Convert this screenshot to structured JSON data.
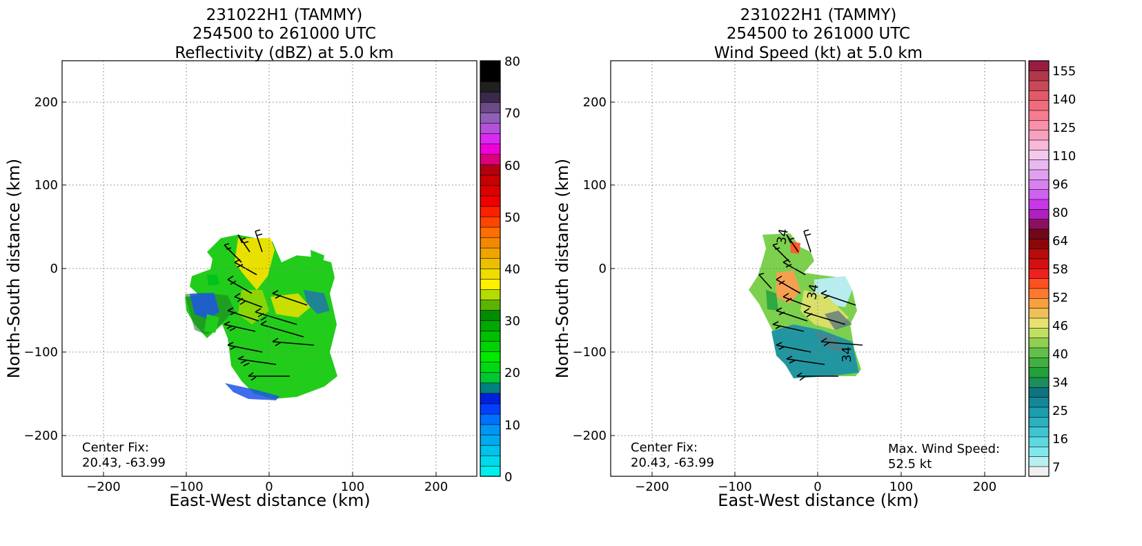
{
  "charts": [
    {
      "title_lines": [
        "231022H1 (TAMMY)",
        "254500 to 261000 UTC",
        "Reflectivity (dBZ) at 5.0 km"
      ],
      "xlabel": "East-West distance (km)",
      "ylabel": "North-South distance (km)",
      "xticks": [
        "−200",
        "−100",
        "0",
        "100",
        "200"
      ],
      "yticks": [
        "200",
        "100",
        "0",
        "−100",
        "−200"
      ],
      "center_fix_label": "Center Fix:",
      "center_fix_value": "20.43, -63.99",
      "colorbar_labels": [
        "80",
        "70",
        "60",
        "50",
        "40",
        "30",
        "20",
        "10",
        "0"
      ]
    },
    {
      "title_lines": [
        "231022H1 (TAMMY)",
        "254500 to 261000 UTC",
        "Wind Speed (kt) at 5.0 km"
      ],
      "xlabel": "East-West distance (km)",
      "ylabel": "North-South distance (km)",
      "xticks": [
        "−200",
        "−100",
        "0",
        "100",
        "200"
      ],
      "yticks": [
        "200",
        "100",
        "0",
        "−100",
        "−200"
      ],
      "center_fix_label": "Center Fix:",
      "center_fix_value": "20.43, -63.99",
      "max_wind_label": "Max. Wind Speed:",
      "max_wind_value": "52.5 kt",
      "contour_labels": [
        "34",
        "34",
        "34"
      ],
      "colorbar_labels": [
        "155",
        "140",
        "125",
        "110",
        "96",
        "80",
        "64",
        "58",
        "52",
        "46",
        "40",
        "34",
        "25",
        "16",
        "7"
      ]
    }
  ],
  "chart_data": [
    {
      "type": "heatmap",
      "variable": "Reflectivity (dBZ)",
      "altitude_km": 5.0,
      "xlim": [
        -250,
        250
      ],
      "ylim": [
        -250,
        250
      ],
      "grid": true,
      "colorbar": {
        "min": 0,
        "max": 80,
        "step": 2.5,
        "colors": [
          "#00eeee",
          "#00d8ec",
          "#00c2ea",
          "#00aaf0",
          "#0096f6",
          "#0070ff",
          "#0040ff",
          "#0020dd",
          "#008080",
          "#00c832",
          "#00d814",
          "#00ea00",
          "#00d400",
          "#00be00",
          "#00a800",
          "#008c00",
          "#5cb400",
          "#b4dc00",
          "#fff000",
          "#f0dc00",
          "#ecc000",
          "#f0a400",
          "#f48800",
          "#ff6e00",
          "#ff4600",
          "#ff2000",
          "#f00000",
          "#dc0000",
          "#c80000",
          "#b40010",
          "#dc007c",
          "#f000d8",
          "#dc28f0",
          "#b450dc",
          "#9060b8",
          "#6c4a86",
          "#3c2848",
          "#202020",
          "#000000",
          "#000000"
        ]
      },
      "center_fix": [
        20.43,
        -63.99
      ]
    },
    {
      "type": "heatmap",
      "variable": "Wind Speed (kt)",
      "altitude_km": 5.0,
      "xlim": [
        -250,
        250
      ],
      "ylim": [
        -250,
        250
      ],
      "grid": true,
      "contour_level_kt": 34,
      "colorbar": {
        "labels": [
          7,
          16,
          25,
          34,
          40,
          46,
          52,
          58,
          64,
          80,
          96,
          110,
          125,
          140,
          155
        ],
        "colors": [
          "#f0f0f0",
          "#b8f0f0",
          "#80e8ec",
          "#5cd8e0",
          "#40c4d0",
          "#2cb0c0",
          "#1c9cac",
          "#148898",
          "#0e7482",
          "#1c8e5a",
          "#22a03a",
          "#40b040",
          "#60c048",
          "#90d050",
          "#c0e060",
          "#e8e070",
          "#f0c058",
          "#f8a040",
          "#ff7830",
          "#ff5020",
          "#f02020",
          "#d41010",
          "#b80c0c",
          "#8c0808",
          "#700818",
          "#8c1060",
          "#b020c0",
          "#c838e8",
          "#d060f0",
          "#d880f0",
          "#e0a0f0",
          "#e8b8f0",
          "#f4c8ec",
          "#f8b8d8",
          "#f8a0c0",
          "#f890a8",
          "#f87c90",
          "#f06c7c",
          "#e05a68",
          "#c84858",
          "#b03848",
          "#9a1c40"
        ]
      },
      "max_wind_kt": 52.5,
      "center_fix": [
        20.43,
        -63.99
      ]
    }
  ]
}
